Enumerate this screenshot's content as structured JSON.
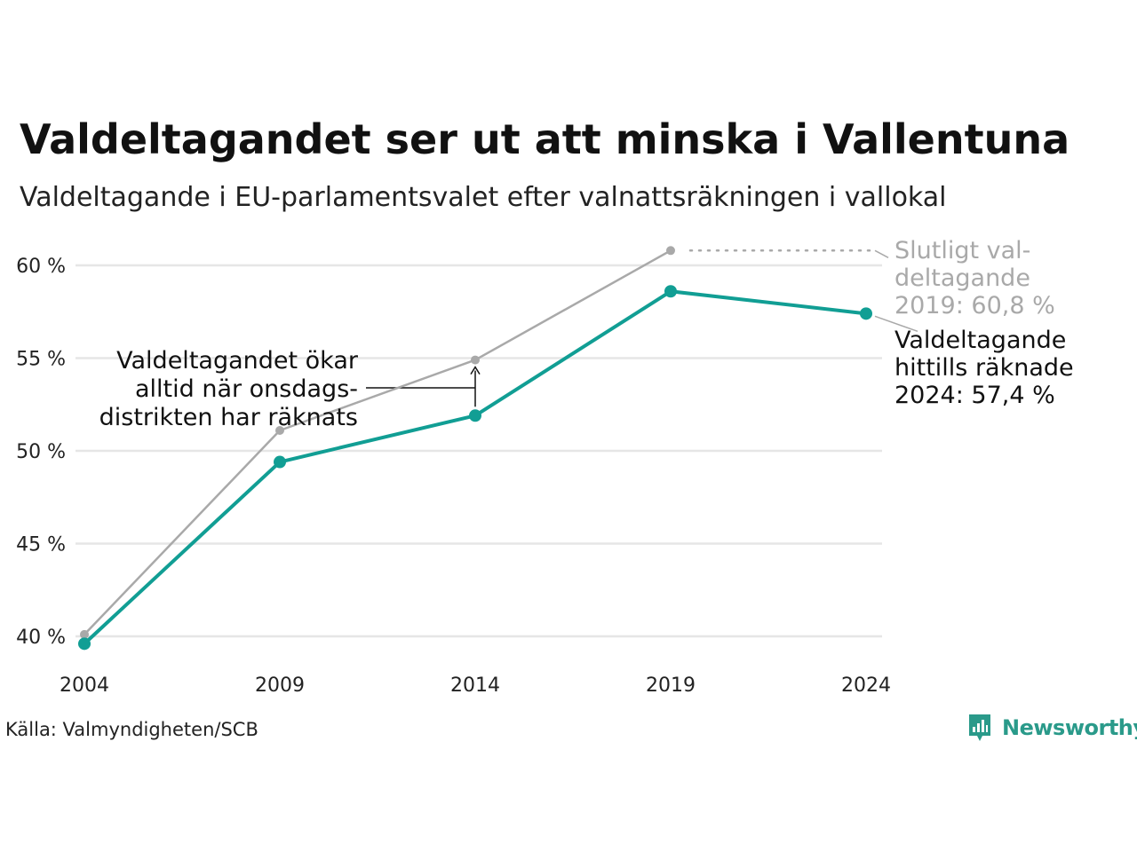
{
  "title": "Valdeltagandet ser ut att minska i Vallentuna",
  "subtitle": "Valdeltagande i EU-parlamentsvalet efter valnattsräkningen i vallokal",
  "source": "Källa: Valmyndigheten/SCB",
  "brand": "Newsworthy",
  "colors": {
    "main": "#119e94",
    "final": "#a9a9a9",
    "grid": "#e6e6e6",
    "text": "#111111"
  },
  "chart_data": {
    "type": "line",
    "x": [
      "2004",
      "2009",
      "2014",
      "2019",
      "2024"
    ],
    "ylim": [
      40,
      60
    ],
    "yticks": [
      40,
      45,
      50,
      55,
      60
    ],
    "ytick_labels": [
      "40 %",
      "45 %",
      "50 %",
      "55 %",
      "60 %"
    ],
    "grid": true,
    "series": [
      {
        "key": "final",
        "values": [
          40.1,
          51.1,
          54.9,
          60.8,
          null
        ],
        "color": "#a9a9a9"
      },
      {
        "key": "election_night",
        "values": [
          39.6,
          49.4,
          51.9,
          58.6,
          57.4
        ],
        "color": "#119e94"
      }
    ],
    "annotations": {
      "final_label": [
        "Slutligt val-",
        "deltagande",
        "2019: 60,8 %"
      ],
      "current_label": [
        "Valdeltagande",
        "hittills räknade",
        "2024: 57,4 %"
      ],
      "explain_label": [
        "Valdeltagandet ökar",
        "alltid när onsdags-",
        "distrikten har räknats"
      ]
    }
  }
}
